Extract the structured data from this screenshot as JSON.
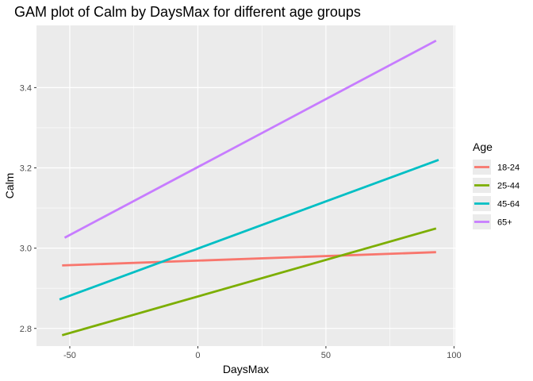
{
  "chart_data": {
    "type": "line",
    "title": "GAM plot of Calm by DaysMax for different age groups",
    "xlabel": "DaysMax",
    "ylabel": "Calm",
    "xlim": [
      -63,
      100.5
    ],
    "ylim": [
      2.756,
      3.555
    ],
    "x_ticks": [
      -50,
      0,
      50,
      100
    ],
    "x_tick_labels": [
      "-50",
      "0",
      "50",
      "100"
    ],
    "y_ticks": [
      2.8,
      3.0,
      3.2,
      3.4
    ],
    "y_tick_labels": [
      "2.8",
      "3.0",
      "3.2",
      "3.4"
    ],
    "grid": true,
    "legend": {
      "title": "Age",
      "position": "right"
    },
    "series": [
      {
        "name": "18-24",
        "color": "#F8766D",
        "x": [
          -53,
          93
        ],
        "y": [
          2.957,
          2.99
        ]
      },
      {
        "name": "25-44",
        "color": "#7CAE00",
        "x": [
          -53,
          93
        ],
        "y": [
          2.783,
          3.049
        ]
      },
      {
        "name": "45-64",
        "color": "#00BFC4",
        "x": [
          -54,
          94
        ],
        "y": [
          2.872,
          3.22
        ]
      },
      {
        "name": "65+",
        "color": "#C77CFF",
        "x": [
          -52,
          93
        ],
        "y": [
          3.026,
          3.517
        ]
      }
    ]
  }
}
